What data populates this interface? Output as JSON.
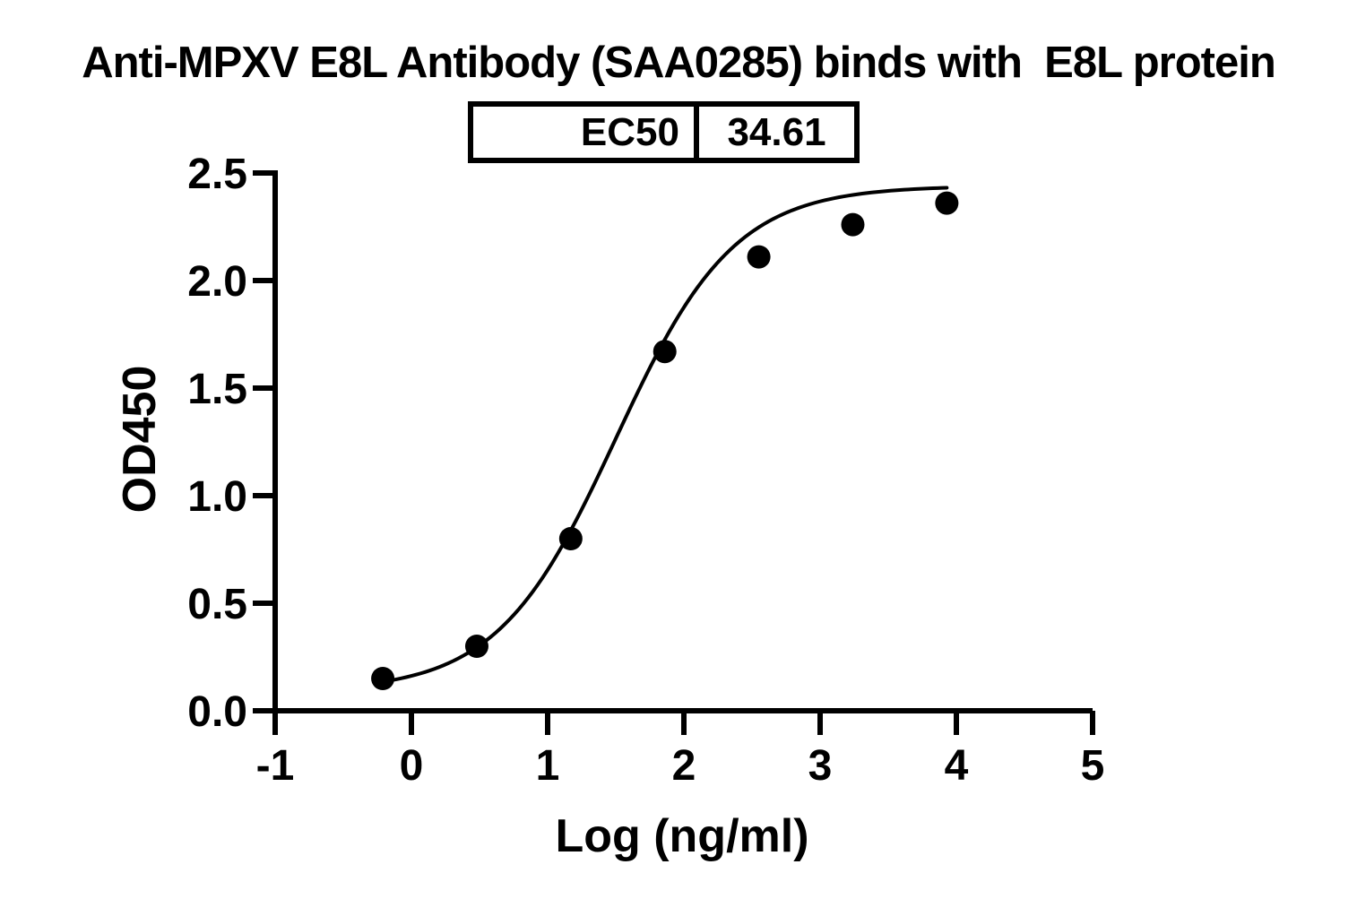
{
  "page": {
    "background": "#ffffff",
    "foreground": "#000000"
  },
  "title": "Anti-MPXV E8L Antibody (SAA0285) binds with  E8L protein",
  "ec50_table": {
    "label": "EC50",
    "value": "34.61"
  },
  "chart_data": {
    "type": "scatter",
    "title": "Anti-MPXV E8L Antibody (SAA0285) binds with  E8L protein",
    "xlabel": "Log (ng/ml)",
    "ylabel": "OD450",
    "xlim": [
      -1,
      5
    ],
    "ylim": [
      0.0,
      2.5
    ],
    "grid": false,
    "x_ticks": [
      -1,
      0,
      1,
      2,
      3,
      4,
      5
    ],
    "x_tick_labels": [
      "-1",
      "0",
      "1",
      "2",
      "3",
      "4",
      "5"
    ],
    "y_ticks": [
      0.0,
      0.5,
      1.0,
      1.5,
      2.0,
      2.5
    ],
    "y_tick_labels": [
      "0.0",
      "0.5",
      "1.0",
      "1.5",
      "2.0",
      "2.5"
    ],
    "series": [
      {
        "name": "Anti-MPXV E8L Antibody (SAA0285)",
        "x": [
          -0.21,
          0.48,
          1.17,
          1.86,
          2.55,
          3.24,
          3.93
        ],
        "y": [
          0.15,
          0.3,
          0.8,
          1.67,
          2.11,
          2.26,
          2.36
        ]
      }
    ],
    "fit_curve": {
      "model": "4PL",
      "bottom": 0.09,
      "top": 2.44,
      "hill": 1.0,
      "log_ec50": 1.5
    },
    "ec50": 34.61,
    "marker_color": "#000000",
    "line_color": "#000000",
    "axis_color": "#000000"
  }
}
